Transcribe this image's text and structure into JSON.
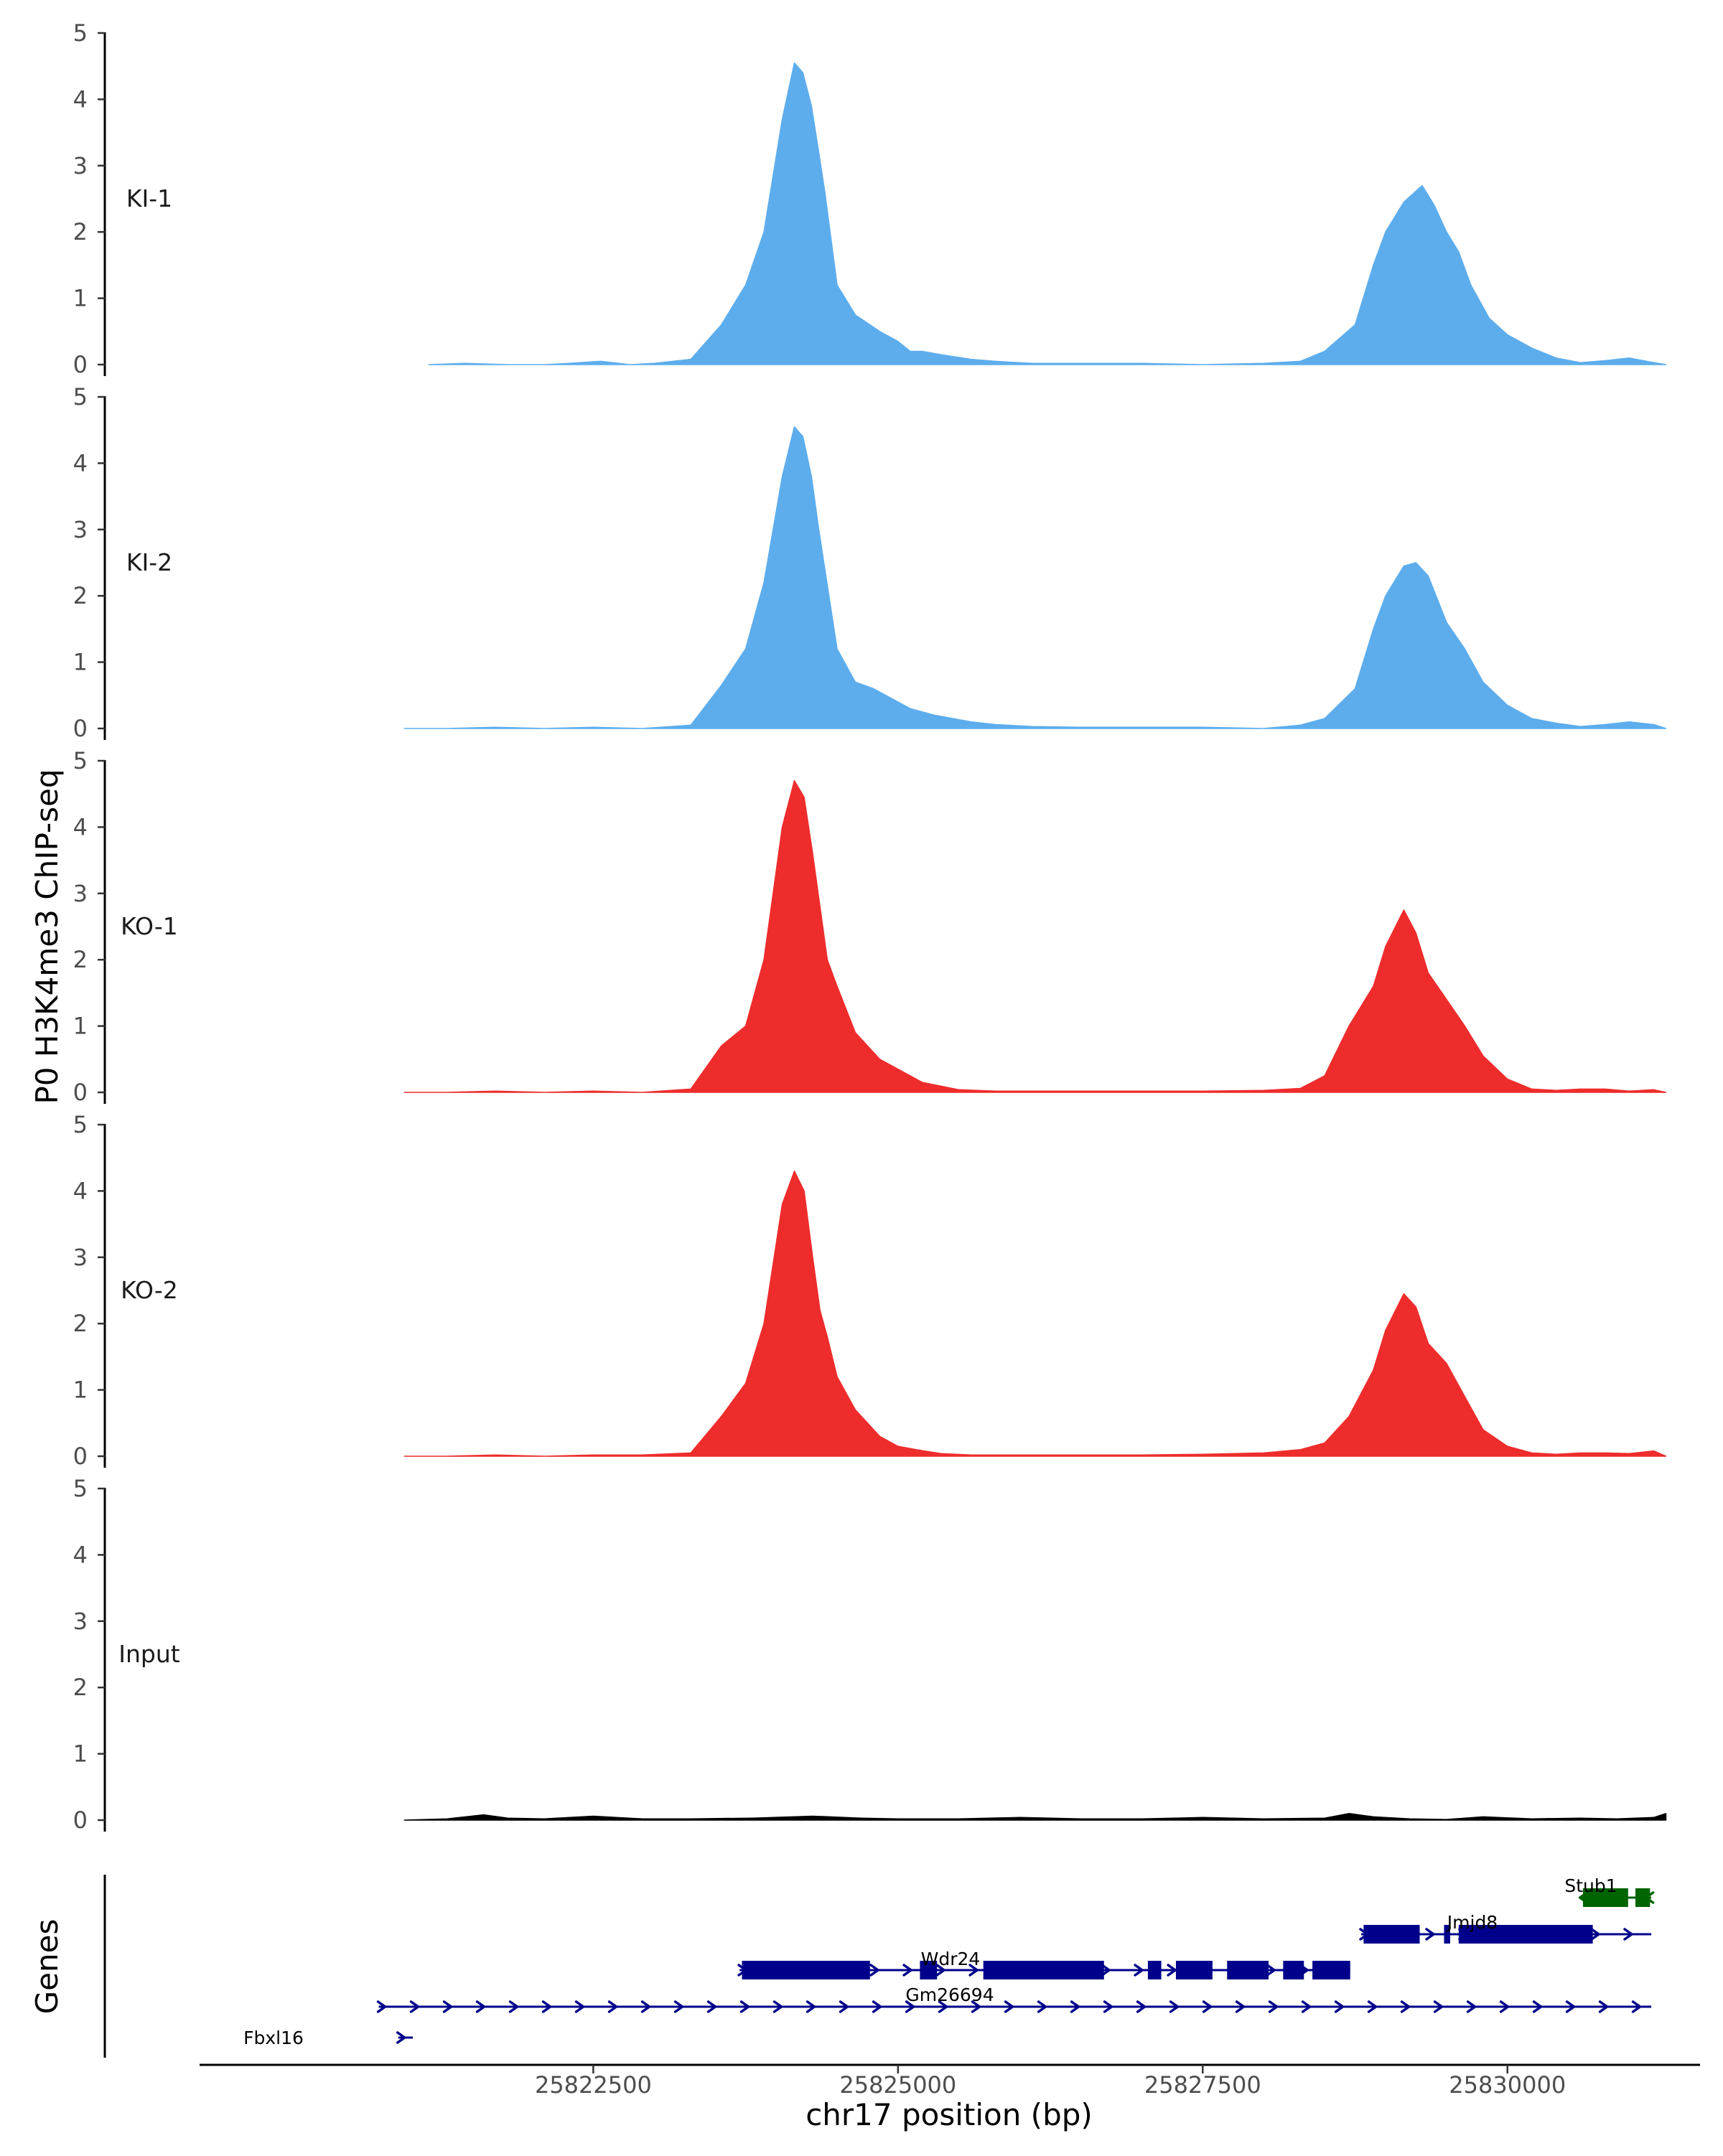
{
  "chart_data": {
    "type": "area",
    "title": "",
    "xlabel": "chr17 position (bp)",
    "ylabel": "P0 H3K4me3 ChIP-seq",
    "genes_label": "Genes",
    "xlim": [
      25819270,
      25831580
    ],
    "ylim": [
      0,
      5
    ],
    "y_ticks": [
      "0",
      "1",
      "2",
      "3",
      "4",
      "5"
    ],
    "x_ticks": [
      {
        "value": 25822500,
        "label": "25822500"
      },
      {
        "value": 25825000,
        "label": "25825000"
      },
      {
        "value": 25827500,
        "label": "25827500"
      },
      {
        "value": 25830000,
        "label": "25830000"
      }
    ],
    "grid": false,
    "series": [
      {
        "name": "KI-1",
        "color": "#5DADEC",
        "x": [
          25821150,
          25821450,
          25821800,
          25822100,
          25822300,
          25822560,
          25822800,
          25823000,
          25823300,
          25823550,
          25823750,
          25823900,
          25824050,
          25824150,
          25824220,
          25824290,
          25824350,
          25824400,
          25824500,
          25824650,
          25824850,
          25825000,
          25825100,
          25825200,
          25825350,
          25825600,
          25825800,
          25826100,
          25826500,
          25827000,
          25827500,
          25828000,
          25828300,
          25828500,
          25828750,
          25828900,
          25829000,
          25829150,
          25829300,
          25829400,
          25829500,
          25829600,
          25829700,
          25829850,
          25830000,
          25830200,
          25830400,
          25830600,
          25830800,
          25831000,
          25831200,
          25831300
        ],
        "y": [
          0.0,
          0.02,
          0.0,
          0.0,
          0.02,
          0.05,
          0.0,
          0.02,
          0.08,
          0.6,
          1.2,
          2.0,
          3.7,
          4.55,
          4.4,
          3.9,
          3.2,
          2.6,
          1.2,
          0.75,
          0.5,
          0.35,
          0.2,
          0.2,
          0.15,
          0.08,
          0.05,
          0.02,
          0.02,
          0.02,
          0.0,
          0.02,
          0.05,
          0.2,
          0.6,
          1.5,
          2.0,
          2.45,
          2.7,
          2.4,
          2.0,
          1.7,
          1.2,
          0.7,
          0.45,
          0.25,
          0.1,
          0.03,
          0.06,
          0.1,
          0.03,
          0.0
        ]
      },
      {
        "name": "KI-2",
        "color": "#5DADEC",
        "x": [
          25820950,
          25821300,
          25821700,
          25822100,
          25822500,
          25822900,
          25823300,
          25823550,
          25823750,
          25823900,
          25824050,
          25824150,
          25824220,
          25824290,
          25824350,
          25824400,
          25824500,
          25824650,
          25824800,
          25825000,
          25825100,
          25825300,
          25825600,
          25825800,
          25826100,
          25826500,
          25827000,
          25827500,
          25828000,
          25828300,
          25828500,
          25828750,
          25828900,
          25829000,
          25829150,
          25829250,
          25829350,
          25829500,
          25829650,
          25829800,
          25830000,
          25830200,
          25830400,
          25830600,
          25830800,
          25831000,
          25831200,
          25831300
        ],
        "y": [
          0.0,
          0.0,
          0.02,
          0.0,
          0.02,
          0.0,
          0.05,
          0.65,
          1.2,
          2.2,
          3.8,
          4.55,
          4.4,
          3.8,
          3.0,
          2.4,
          1.2,
          0.7,
          0.6,
          0.4,
          0.3,
          0.2,
          0.1,
          0.06,
          0.03,
          0.02,
          0.02,
          0.02,
          0.0,
          0.05,
          0.15,
          0.6,
          1.5,
          2.0,
          2.45,
          2.5,
          2.3,
          1.6,
          1.2,
          0.7,
          0.35,
          0.15,
          0.08,
          0.03,
          0.06,
          0.1,
          0.06,
          0.0
        ]
      },
      {
        "name": "KO-1",
        "color": "#EE2C2C",
        "x": [
          25820950,
          25821300,
          25821700,
          25822100,
          25822500,
          25822900,
          25823300,
          25823550,
          25823750,
          25823900,
          25824050,
          25824150,
          25824230,
          25824300,
          25824360,
          25824420,
          25824500,
          25824650,
          25824850,
          25825000,
          25825200,
          25825500,
          25825800,
          25826100,
          25826500,
          25827000,
          25827500,
          25828000,
          25828300,
          25828500,
          25828700,
          25828900,
          25829000,
          25829150,
          25829250,
          25829350,
          25829500,
          25829650,
          25829800,
          25830000,
          25830200,
          25830400,
          25830600,
          25830800,
          25831000,
          25831200,
          25831300
        ],
        "y": [
          0.0,
          0.0,
          0.02,
          0.0,
          0.02,
          0.0,
          0.05,
          0.7,
          1.0,
          2.0,
          4.0,
          4.7,
          4.45,
          3.6,
          2.8,
          2.0,
          1.6,
          0.9,
          0.5,
          0.35,
          0.15,
          0.04,
          0.02,
          0.02,
          0.02,
          0.02,
          0.02,
          0.03,
          0.06,
          0.25,
          1.0,
          1.6,
          2.2,
          2.75,
          2.4,
          1.8,
          1.4,
          1.0,
          0.55,
          0.2,
          0.05,
          0.03,
          0.05,
          0.05,
          0.02,
          0.04,
          0.0
        ]
      },
      {
        "name": "KO-2",
        "color": "#EE2C2C",
        "x": [
          25820950,
          25821300,
          25821700,
          25822100,
          25822500,
          25822900,
          25823300,
          25823550,
          25823750,
          25823900,
          25824050,
          25824150,
          25824230,
          25824300,
          25824360,
          25824420,
          25824500,
          25824650,
          25824850,
          25825000,
          25825150,
          25825350,
          25825600,
          25825800,
          25826100,
          25826500,
          25827000,
          25827500,
          25828000,
          25828300,
          25828500,
          25828700,
          25828900,
          25829000,
          25829150,
          25829250,
          25829350,
          25829500,
          25829650,
          25829800,
          25830000,
          25830200,
          25830400,
          25830600,
          25830800,
          25831000,
          25831200,
          25831300
        ],
        "y": [
          0.0,
          0.0,
          0.02,
          0.0,
          0.02,
          0.02,
          0.05,
          0.6,
          1.1,
          2.0,
          3.8,
          4.3,
          4.0,
          3.0,
          2.2,
          1.8,
          1.2,
          0.7,
          0.3,
          0.15,
          0.1,
          0.04,
          0.02,
          0.02,
          0.02,
          0.02,
          0.02,
          0.03,
          0.05,
          0.1,
          0.2,
          0.6,
          1.3,
          1.9,
          2.45,
          2.25,
          1.7,
          1.4,
          0.9,
          0.4,
          0.15,
          0.05,
          0.03,
          0.05,
          0.05,
          0.04,
          0.08,
          0.0
        ]
      },
      {
        "name": "Input",
        "color": "#000000",
        "x": [
          25820950,
          25821300,
          25821600,
          25821800,
          25822100,
          25822500,
          25822900,
          25823300,
          25823800,
          25824300,
          25824700,
          25825000,
          25825500,
          25826000,
          25826500,
          25827000,
          25827500,
          25828000,
          25828500,
          25828700,
          25828900,
          25829200,
          25829500,
          25829800,
          25830200,
          25830600,
          25830900,
          25831200,
          25831300
        ],
        "y": [
          0.0,
          0.02,
          0.08,
          0.03,
          0.02,
          0.06,
          0.02,
          0.02,
          0.03,
          0.06,
          0.03,
          0.02,
          0.02,
          0.04,
          0.02,
          0.02,
          0.04,
          0.02,
          0.03,
          0.1,
          0.05,
          0.02,
          0.01,
          0.05,
          0.02,
          0.03,
          0.02,
          0.04,
          0.1
        ]
      }
    ],
    "genes": [
      {
        "name": "Stub1",
        "color": "#006400",
        "start": 25830600,
        "end": 25831180,
        "strand": "-",
        "exons": [
          [
            25830620,
            25830990
          ],
          [
            25831050,
            25831170
          ]
        ]
      },
      {
        "name": "Jmjd8",
        "color": "#00008B",
        "start": 25828800,
        "end": 25831180,
        "strand": "+",
        "exons": [
          [
            25828820,
            25829280
          ],
          [
            25829480,
            25829530
          ],
          [
            25829600,
            25830700
          ]
        ]
      },
      {
        "name": "Wdr24",
        "color": "#00008B",
        "start": 25823700,
        "end": 25828710,
        "strand": "+",
        "exons": [
          [
            25823720,
            25824770
          ],
          [
            25825180,
            25825320
          ],
          [
            25825700,
            25826690
          ],
          [
            25827050,
            25827160
          ],
          [
            25827280,
            25827580
          ],
          [
            25827700,
            25828040
          ],
          [
            25828160,
            25828330
          ],
          [
            25828400,
            25828710
          ]
        ]
      },
      {
        "name": "Gm26694",
        "color": "#00008B",
        "start": 25820740,
        "end": 25831180,
        "strand": "+",
        "exons": []
      },
      {
        "name": "Fbxl16",
        "color": "#00008B",
        "start": 25820900,
        "end": 25821020,
        "strand": "+",
        "exons": []
      }
    ]
  }
}
